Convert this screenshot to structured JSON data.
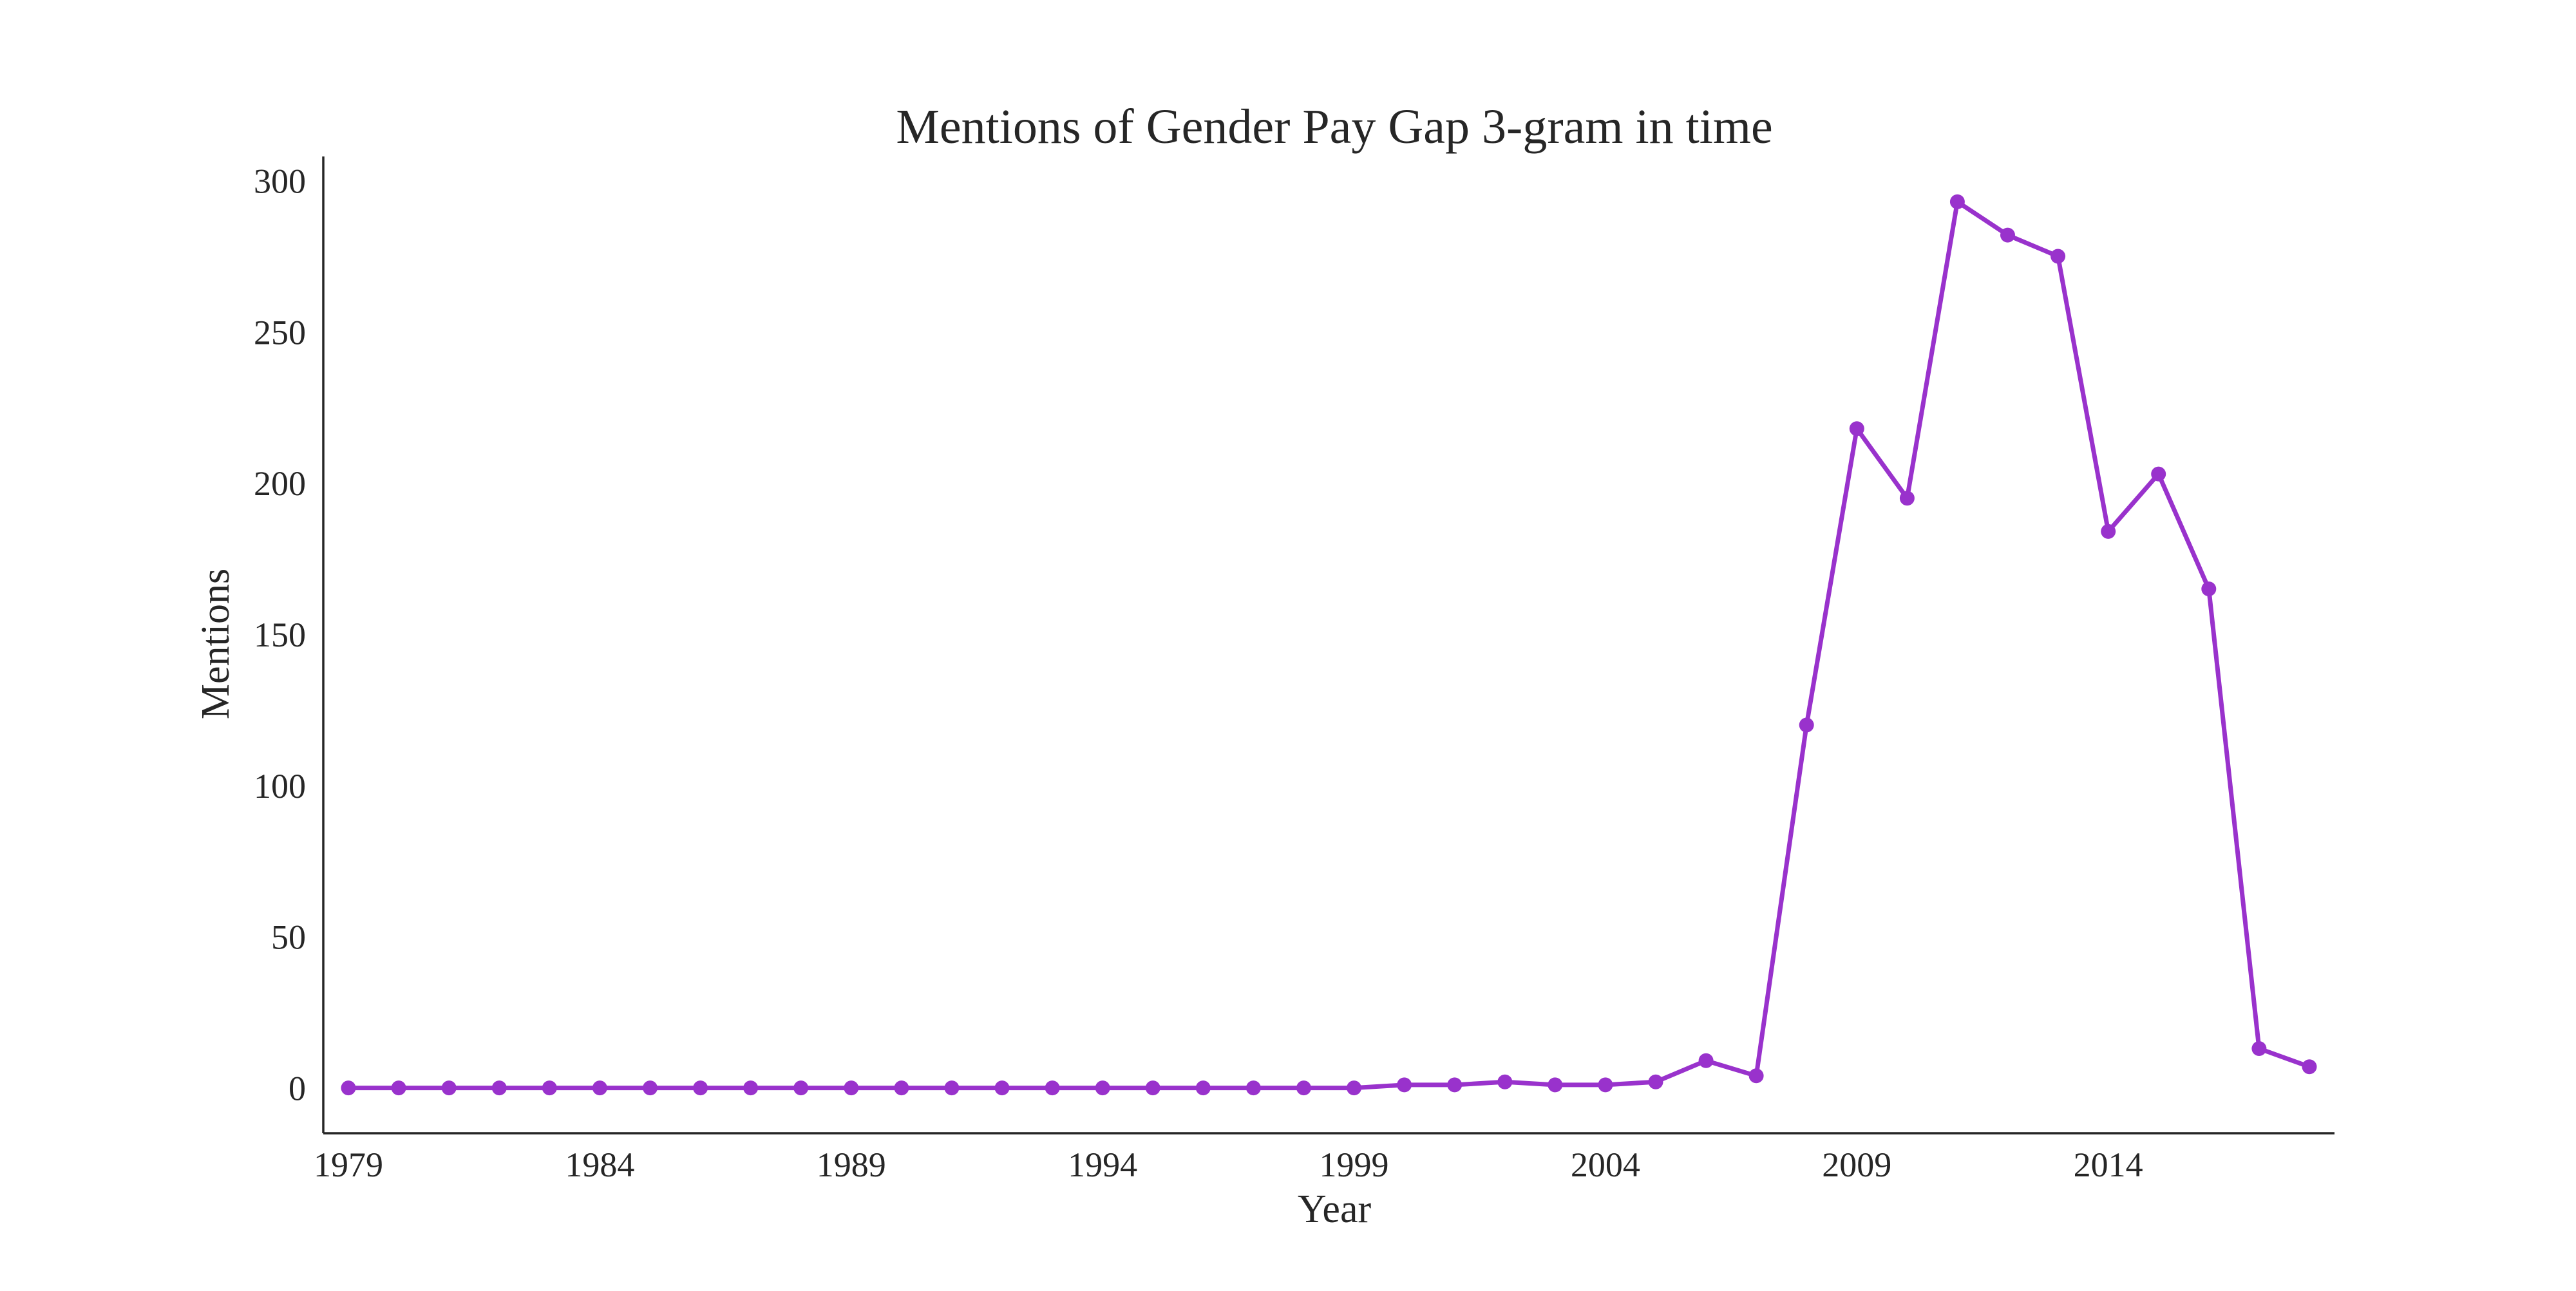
{
  "chart_data": {
    "type": "line",
    "title": "Mentions of Gender Pay Gap 3-gram in time",
    "xlabel": "Year",
    "ylabel": "Mentions",
    "xlim": [
      1978.5,
      2018.5
    ],
    "ylim": [
      -15,
      308
    ],
    "x_ticks": [
      1979,
      1984,
      1989,
      1994,
      1999,
      2004,
      2009,
      2014
    ],
    "y_ticks": [
      0,
      50,
      100,
      150,
      200,
      250,
      300
    ],
    "grid": false,
    "legend": "none",
    "series": [
      {
        "color": "#9932CC",
        "marker": "circle",
        "x": [
          1979,
          1980,
          1981,
          1982,
          1983,
          1984,
          1985,
          1986,
          1987,
          1988,
          1989,
          1990,
          1991,
          1992,
          1993,
          1994,
          1995,
          1996,
          1997,
          1998,
          1999,
          2000,
          2001,
          2002,
          2003,
          2004,
          2005,
          2006,
          2007,
          2008,
          2009,
          2010,
          2011,
          2012,
          2013,
          2014,
          2015,
          2016,
          2017,
          2018
        ],
        "y": [
          0,
          0,
          0,
          0,
          0,
          0,
          0,
          0,
          0,
          0,
          0,
          0,
          0,
          0,
          0,
          0,
          0,
          0,
          0,
          0,
          0,
          1,
          1,
          2,
          1,
          1,
          2,
          9,
          4,
          120,
          218,
          195,
          293,
          282,
          275,
          184,
          203,
          165,
          13,
          7
        ]
      }
    ]
  }
}
